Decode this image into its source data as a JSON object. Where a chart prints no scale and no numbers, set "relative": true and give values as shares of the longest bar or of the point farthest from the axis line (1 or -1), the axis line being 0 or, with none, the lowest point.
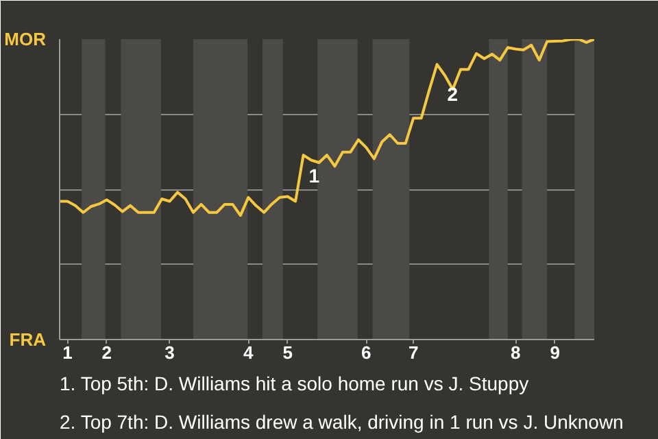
{
  "chart_data": {
    "type": "line",
    "relative": true,
    "categories": [
      null,
      "1",
      null,
      null,
      null,
      null,
      "2",
      null,
      null,
      null,
      null,
      null,
      null,
      null,
      "3",
      null,
      null,
      null,
      null,
      null,
      null,
      null,
      null,
      null,
      "4",
      null,
      null,
      null,
      null,
      "5",
      null,
      null,
      null,
      null,
      null,
      null,
      null,
      null,
      null,
      "6",
      null,
      null,
      null,
      null,
      null,
      "7",
      null,
      null,
      null,
      null,
      null,
      null,
      null,
      null,
      null,
      null,
      null,
      null,
      "8",
      null,
      null,
      null,
      null,
      "9",
      null,
      null,
      null,
      null,
      null
    ],
    "series": [
      {
        "color": "#f5c842",
        "values": [
          0.46,
          0.46,
          0.446,
          0.423,
          0.443,
          0.451,
          0.465,
          0.448,
          0.426,
          0.446,
          0.423,
          0.423,
          0.423,
          0.468,
          0.46,
          0.49,
          0.468,
          0.423,
          0.45,
          0.423,
          0.423,
          0.45,
          0.45,
          0.413,
          0.473,
          0.445,
          0.423,
          0.451,
          0.473,
          0.476,
          0.46,
          0.614,
          0.597,
          0.589,
          0.614,
          0.577,
          0.624,
          0.624,
          0.665,
          0.639,
          0.602,
          0.658,
          0.682,
          0.653,
          0.653,
          0.737,
          0.737,
          0.829,
          0.916,
          0.879,
          0.833,
          0.899,
          0.899,
          0.952,
          0.935,
          0.95,
          0.93,
          0.972,
          0.967,
          0.964,
          0.98,
          0.93,
          0.992,
          0.993,
          0.994,
          0.999,
          1,
          0.989,
          1
        ]
      }
    ],
    "grid": "y",
    "marker": "none",
    "line_style": "solid",
    "annotations": [
      "MOR",
      "FRA",
      "1",
      "2",
      "1. Top 5th: D. Williams hit a solo home run vs J. Stuppy",
      "2. Top 7th: D. Williams drew a walk, driving in 1 run vs J. Unknown"
    ]
  }
}
